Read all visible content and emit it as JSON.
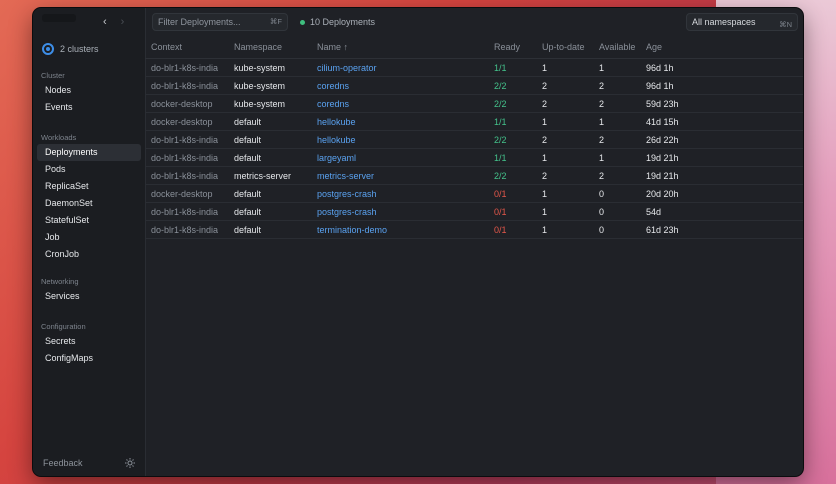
{
  "sidebar": {
    "cluster_label": "2 clusters",
    "sections": [
      {
        "title": "Cluster",
        "items": [
          "Nodes",
          "Events"
        ]
      },
      {
        "title": "Workloads",
        "items": [
          "Deployments",
          "Pods",
          "ReplicaSet",
          "DaemonSet",
          "StatefulSet",
          "Job",
          "CronJob"
        ]
      },
      {
        "title": "Networking",
        "items": [
          "Services"
        ]
      },
      {
        "title": "Configuration",
        "items": [
          "Secrets",
          "ConfigMaps"
        ]
      }
    ],
    "active_item": "Deployments",
    "feedback_label": "Feedback"
  },
  "nav": {
    "back": "‹",
    "forward": "›"
  },
  "filter": {
    "placeholder": "Filter Deployments...",
    "shortcut": "⌘F"
  },
  "status": {
    "deployments_count": "10 Deployments",
    "dot_color": "#3fbf7f"
  },
  "namespace_select": {
    "value": "All namespaces",
    "shortcut": "⌘N"
  },
  "table": {
    "columns": [
      "Context",
      "Namespace",
      "Name ↑",
      "Ready",
      "Up-to-date",
      "Available",
      "Age"
    ],
    "rows": [
      {
        "context": "do-blr1-k8s-india",
        "namespace": "kube-system",
        "name": "cilium-operator",
        "ready": "1/1",
        "ready_ok": true,
        "uptodate": "1",
        "available": "1",
        "age": "96d 1h"
      },
      {
        "context": "do-blr1-k8s-india",
        "namespace": "kube-system",
        "name": "coredns",
        "ready": "2/2",
        "ready_ok": true,
        "uptodate": "2",
        "available": "2",
        "age": "96d 1h"
      },
      {
        "context": "docker-desktop",
        "namespace": "kube-system",
        "name": "coredns",
        "ready": "2/2",
        "ready_ok": true,
        "uptodate": "2",
        "available": "2",
        "age": "59d 23h"
      },
      {
        "context": "docker-desktop",
        "namespace": "default",
        "name": "hellokube",
        "ready": "1/1",
        "ready_ok": true,
        "uptodate": "1",
        "available": "1",
        "age": "41d 15h"
      },
      {
        "context": "do-blr1-k8s-india",
        "namespace": "default",
        "name": "hellokube",
        "ready": "2/2",
        "ready_ok": true,
        "uptodate": "2",
        "available": "2",
        "age": "26d 22h"
      },
      {
        "context": "do-blr1-k8s-india",
        "namespace": "default",
        "name": "largeyaml",
        "ready": "1/1",
        "ready_ok": true,
        "uptodate": "1",
        "available": "1",
        "age": "19d 21h"
      },
      {
        "context": "do-blr1-k8s-india",
        "namespace": "metrics-server",
        "name": "metrics-server",
        "ready": "2/2",
        "ready_ok": true,
        "uptodate": "2",
        "available": "2",
        "age": "19d 21h"
      },
      {
        "context": "docker-desktop",
        "namespace": "default",
        "name": "postgres-crash",
        "ready": "0/1",
        "ready_ok": false,
        "uptodate": "1",
        "available": "0",
        "age": "20d 20h"
      },
      {
        "context": "do-blr1-k8s-india",
        "namespace": "default",
        "name": "postgres-crash",
        "ready": "0/1",
        "ready_ok": false,
        "uptodate": "1",
        "available": "0",
        "age": "54d"
      },
      {
        "context": "do-blr1-k8s-india",
        "namespace": "default",
        "name": "termination-demo",
        "ready": "0/1",
        "ready_ok": false,
        "uptodate": "1",
        "available": "0",
        "age": "61d 23h"
      }
    ]
  },
  "colors": {
    "accent": "#5aa2f0",
    "ok": "#44c28b",
    "error": "#e4574a"
  },
  "icons": [
    "cluster-logo-icon",
    "back-icon",
    "forward-icon",
    "sun-icon",
    "status-dot-icon"
  ]
}
